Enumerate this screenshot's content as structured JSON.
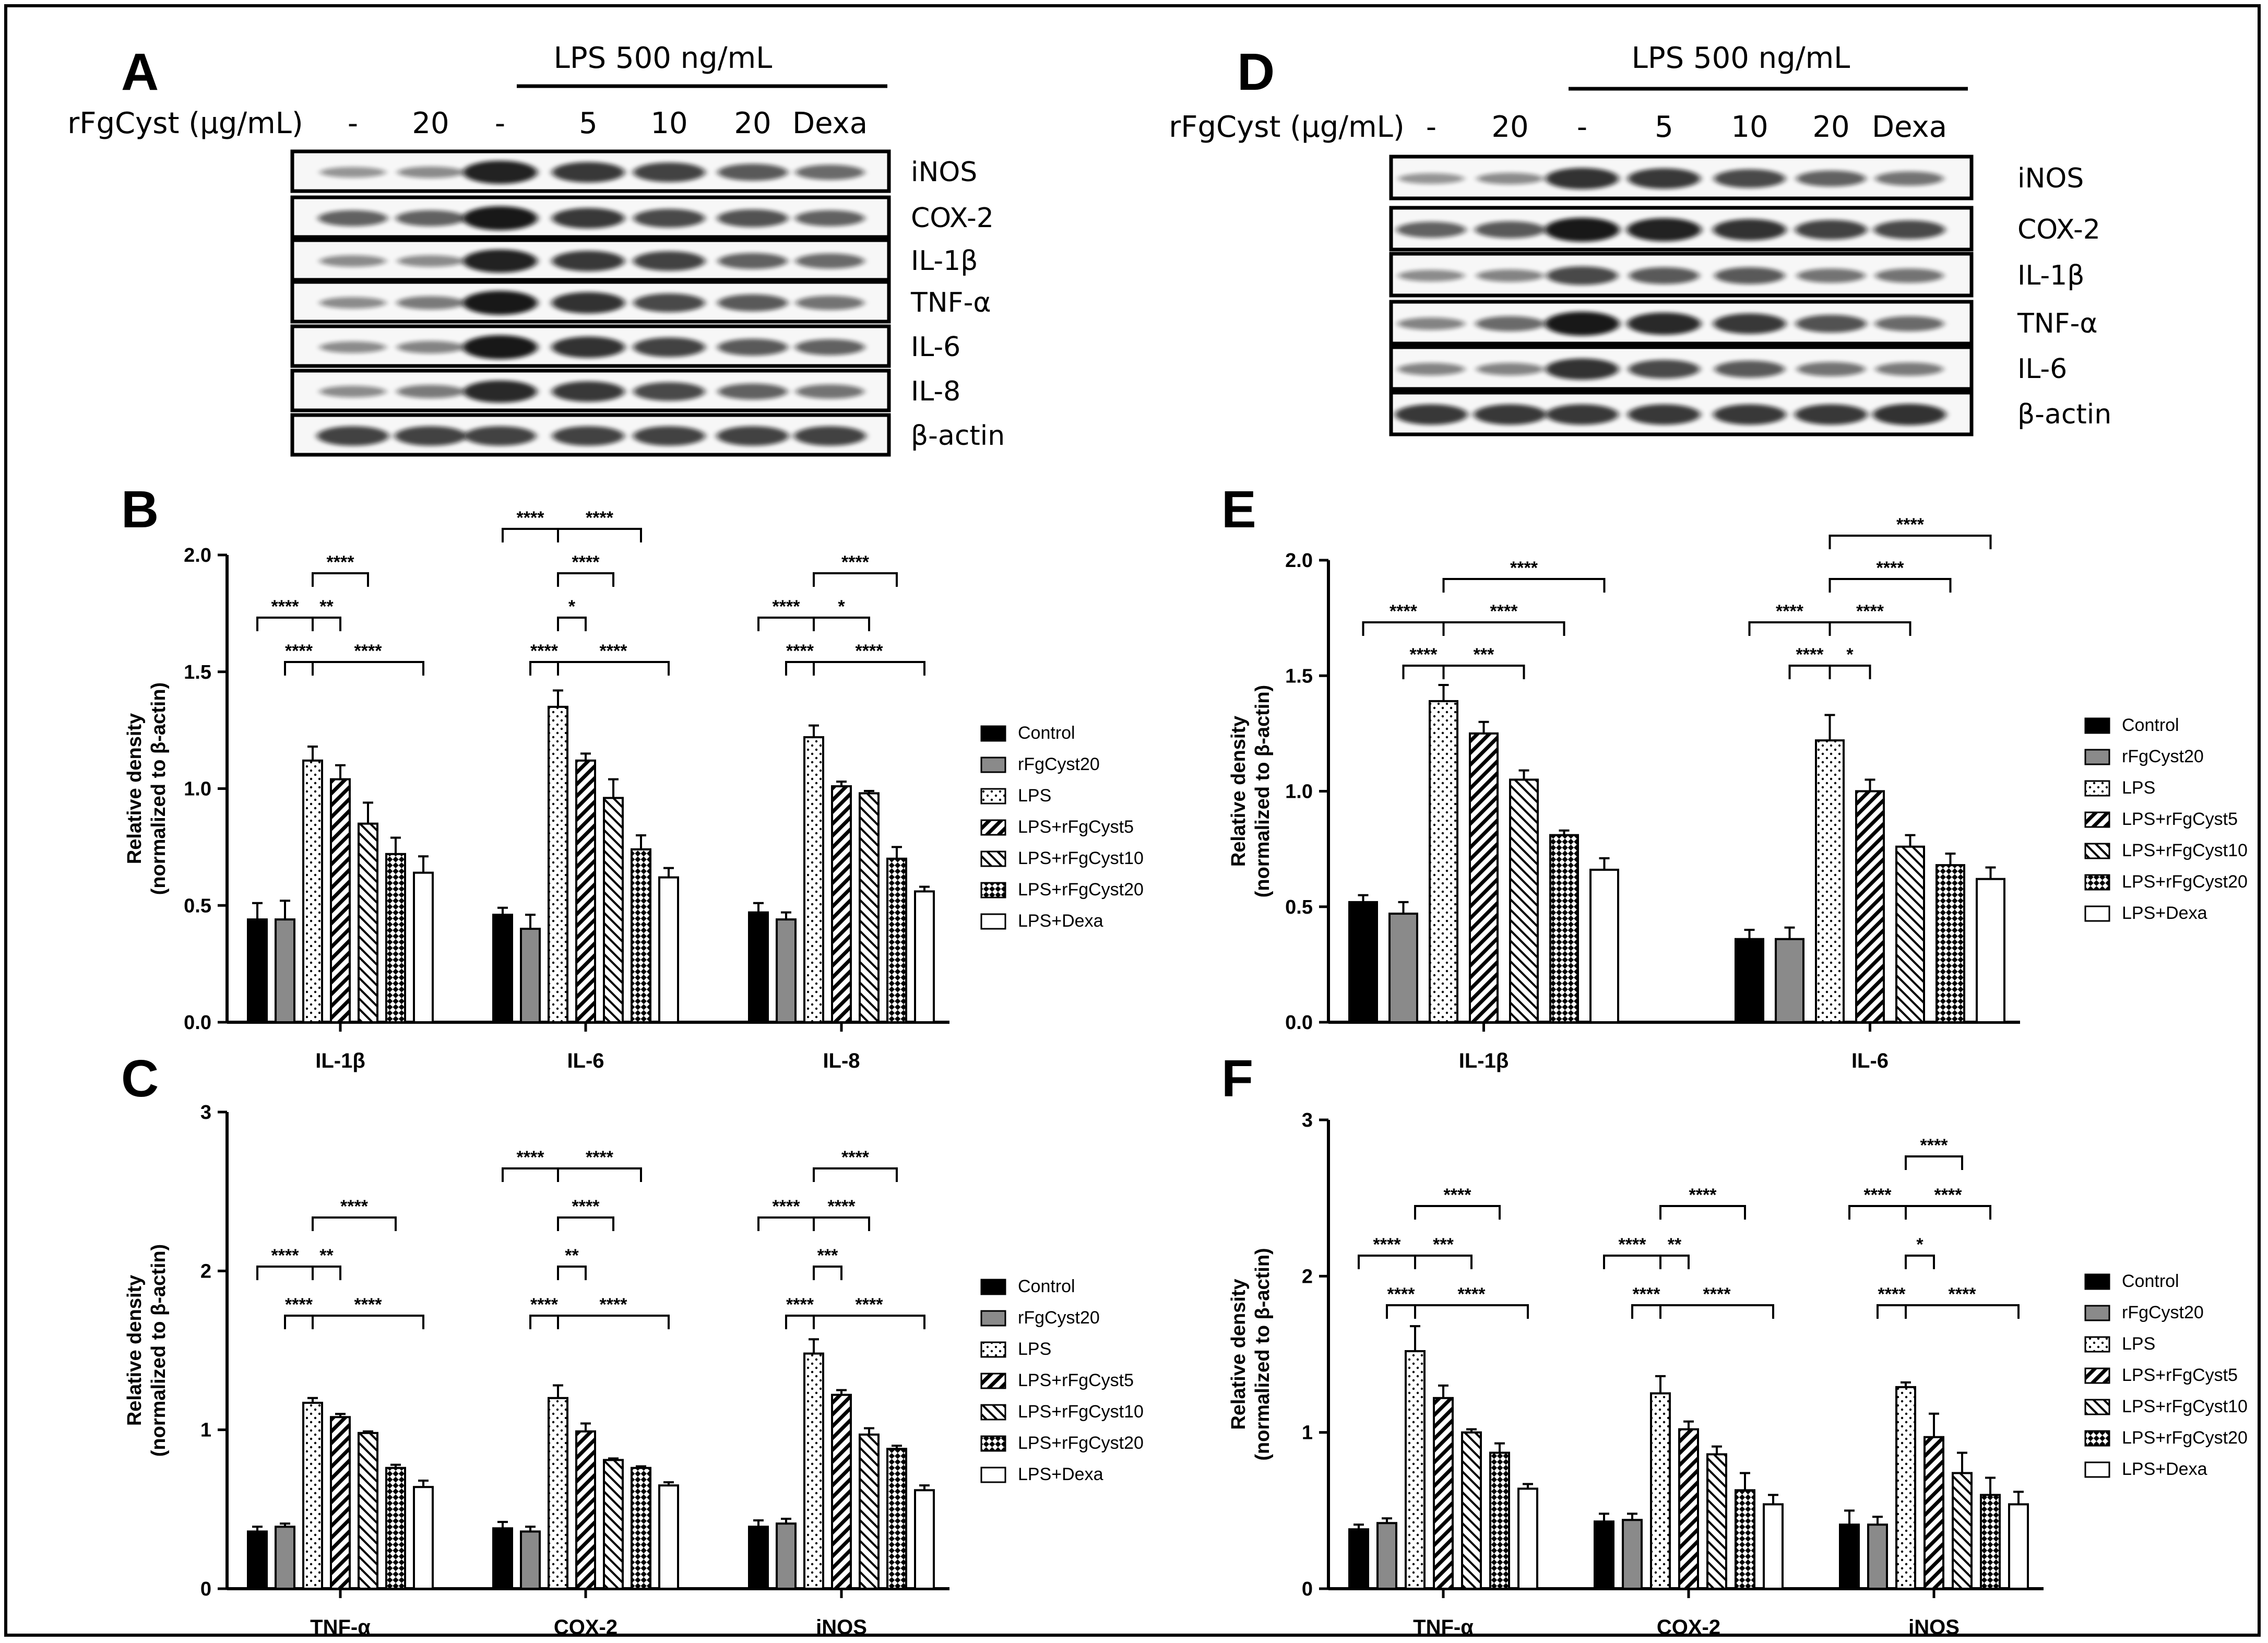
{
  "colors": {
    "black": "#000000",
    "gray": "#8a8a8a",
    "white": "#ffffff",
    "band": "#1a1a1a"
  },
  "legend": [
    {
      "label": "Control",
      "fill": "solid-black"
    },
    {
      "label": "rFgCyst20",
      "fill": "solid-gray"
    },
    {
      "label": "LPS",
      "fill": "dots"
    },
    {
      "label": "LPS+rFgCyst5",
      "fill": "hatch-back"
    },
    {
      "label": "LPS+rFgCyst10",
      "fill": "hatch-fwd"
    },
    {
      "label": "LPS+rFgCyst20",
      "fill": "checker"
    },
    {
      "label": "LPS+Dexa",
      "fill": "solid-white"
    }
  ],
  "blots": [
    {
      "panel": "A",
      "lps_label": "LPS 500 ng/mL",
      "treatment_label": "rFgCyst (μg/mL)",
      "lanes": [
        "-",
        "20",
        "-",
        "5",
        "10",
        "20",
        "Dexa"
      ],
      "rows": [
        {
          "name": "iNOS",
          "intensity": [
            0.25,
            0.3,
            0.95,
            0.8,
            0.75,
            0.6,
            0.5
          ]
        },
        {
          "name": "COX-2",
          "intensity": [
            0.55,
            0.55,
            1.0,
            0.8,
            0.7,
            0.65,
            0.55
          ]
        },
        {
          "name": "IL-1β",
          "intensity": [
            0.3,
            0.3,
            0.95,
            0.8,
            0.75,
            0.55,
            0.5
          ]
        },
        {
          "name": "TNF-α",
          "intensity": [
            0.3,
            0.4,
            1.0,
            0.85,
            0.7,
            0.6,
            0.45
          ]
        },
        {
          "name": "IL-6",
          "intensity": [
            0.3,
            0.35,
            1.0,
            0.85,
            0.75,
            0.6,
            0.55
          ]
        },
        {
          "name": "IL-8",
          "intensity": [
            0.3,
            0.4,
            0.9,
            0.8,
            0.7,
            0.55,
            0.45
          ]
        },
        {
          "name": "β-actin",
          "intensity": [
            0.75,
            0.75,
            0.75,
            0.75,
            0.75,
            0.75,
            0.75
          ]
        }
      ]
    },
    {
      "panel": "D",
      "lps_label": "LPS 500 ng/mL",
      "treatment_label": "rFgCyst (μg/mL)",
      "lanes": [
        "-",
        "20",
        "-",
        "5",
        "10",
        "20",
        "Dexa"
      ],
      "rows": [
        {
          "name": "iNOS",
          "intensity": [
            0.25,
            0.3,
            0.85,
            0.8,
            0.7,
            0.55,
            0.45
          ]
        },
        {
          "name": "COX-2",
          "intensity": [
            0.55,
            0.6,
            1.0,
            0.95,
            0.85,
            0.75,
            0.7
          ]
        },
        {
          "name": "IL-1β",
          "intensity": [
            0.3,
            0.35,
            0.7,
            0.6,
            0.6,
            0.45,
            0.45
          ]
        },
        {
          "name": "TNF-α",
          "intensity": [
            0.35,
            0.5,
            1.0,
            0.9,
            0.8,
            0.65,
            0.5
          ]
        },
        {
          "name": "IL-6",
          "intensity": [
            0.35,
            0.35,
            0.85,
            0.7,
            0.6,
            0.45,
            0.4
          ]
        },
        {
          "name": "β-actin",
          "intensity": [
            0.8,
            0.8,
            0.8,
            0.8,
            0.8,
            0.8,
            0.85
          ]
        }
      ]
    }
  ],
  "chart_data": [
    {
      "panel": "B",
      "type": "bar",
      "ylabel": "Relative density (normalized to β-actin)",
      "ylim": [
        0,
        2.0
      ],
      "yticks": [
        "0.0",
        "0.5",
        "1.0",
        "1.5",
        "2.0"
      ],
      "ytick_values": [
        0,
        0.5,
        1.0,
        1.5,
        2.0
      ],
      "categories": [
        "IL-1β",
        "IL-6",
        "IL-8"
      ],
      "series": [
        {
          "name": "Control",
          "values": [
            0.44,
            0.46,
            0.47
          ],
          "errors": [
            0.07,
            0.03,
            0.04
          ]
        },
        {
          "name": "rFgCyst20",
          "values": [
            0.44,
            0.4,
            0.44
          ],
          "errors": [
            0.08,
            0.06,
            0.03
          ]
        },
        {
          "name": "LPS",
          "values": [
            1.12,
            1.35,
            1.22
          ],
          "errors": [
            0.06,
            0.07,
            0.05
          ]
        },
        {
          "name": "LPS+rFgCyst5",
          "values": [
            1.04,
            1.12,
            1.01
          ],
          "errors": [
            0.06,
            0.03,
            0.02
          ]
        },
        {
          "name": "LPS+rFgCyst10",
          "values": [
            0.85,
            0.96,
            0.98
          ],
          "errors": [
            0.09,
            0.08,
            0.01
          ]
        },
        {
          "name": "LPS+rFgCyst20",
          "values": [
            0.72,
            0.74,
            0.7
          ],
          "errors": [
            0.07,
            0.06,
            0.05
          ]
        },
        {
          "name": "LPS+Dexa",
          "values": [
            0.64,
            0.62,
            0.56
          ],
          "errors": [
            0.07,
            0.04,
            0.02
          ]
        }
      ],
      "significance": [
        [
          {
            "from": 0,
            "to": 2,
            "level": 1,
            "label": "****"
          },
          {
            "from": 1,
            "to": 2,
            "level": 0,
            "label": "****"
          },
          {
            "from": 2,
            "to": 3,
            "level": 1,
            "label": "**"
          },
          {
            "from": 2,
            "to": 4,
            "level": 2,
            "label": "****"
          },
          {
            "from": 2,
            "to": 6,
            "level": 0,
            "label": "****"
          }
        ],
        [
          {
            "from": 0,
            "to": 2,
            "level": 3,
            "label": "****"
          },
          {
            "from": 1,
            "to": 2,
            "level": 0,
            "label": "****"
          },
          {
            "from": 2,
            "to": 3,
            "level": 1,
            "label": "*"
          },
          {
            "from": 2,
            "to": 4,
            "level": 2,
            "label": "****"
          },
          {
            "from": 2,
            "to": 5,
            "level": 3,
            "label": "****"
          },
          {
            "from": 2,
            "to": 6,
            "level": 0,
            "label": "****"
          }
        ],
        [
          {
            "from": 0,
            "to": 2,
            "level": 1,
            "label": "****"
          },
          {
            "from": 1,
            "to": 2,
            "level": 0,
            "label": "****"
          },
          {
            "from": 2,
            "to": 4,
            "level": 1,
            "label": "*"
          },
          {
            "from": 2,
            "to": 5,
            "level": 2,
            "label": "****"
          },
          {
            "from": 2,
            "to": 6,
            "level": 0,
            "label": "****"
          }
        ]
      ]
    },
    {
      "panel": "C",
      "type": "bar",
      "ylabel": "Relative density (normalized to β-actin)",
      "ylim": [
        0,
        3
      ],
      "yticks": [
        "0",
        "1",
        "2",
        "3"
      ],
      "ytick_values": [
        0,
        1,
        2,
        3
      ],
      "categories": [
        "TNF-α",
        "COX-2",
        "iNOS"
      ],
      "series": [
        {
          "name": "Control",
          "values": [
            0.36,
            0.38,
            0.39
          ],
          "errors": [
            0.03,
            0.04,
            0.04
          ]
        },
        {
          "name": "rFgCyst20",
          "values": [
            0.39,
            0.36,
            0.41
          ],
          "errors": [
            0.02,
            0.03,
            0.03
          ]
        },
        {
          "name": "LPS",
          "values": [
            1.17,
            1.2,
            1.48
          ],
          "errors": [
            0.03,
            0.08,
            0.09
          ]
        },
        {
          "name": "LPS+rFgCyst5",
          "values": [
            1.08,
            0.99,
            1.22
          ],
          "errors": [
            0.02,
            0.05,
            0.03
          ]
        },
        {
          "name": "LPS+rFgCyst10",
          "values": [
            0.98,
            0.81,
            0.97
          ],
          "errors": [
            0.01,
            0.01,
            0.04
          ]
        },
        {
          "name": "LPS+rFgCyst20",
          "values": [
            0.76,
            0.76,
            0.88
          ],
          "errors": [
            0.02,
            0.01,
            0.02
          ]
        },
        {
          "name": "LPS+Dexa",
          "values": [
            0.64,
            0.65,
            0.62
          ],
          "errors": [
            0.04,
            0.02,
            0.03
          ]
        }
      ],
      "significance": [
        [
          {
            "from": 0,
            "to": 2,
            "level": 1,
            "label": "****"
          },
          {
            "from": 1,
            "to": 2,
            "level": 0,
            "label": "****"
          },
          {
            "from": 2,
            "to": 3,
            "level": 1,
            "label": "**"
          },
          {
            "from": 2,
            "to": 5,
            "level": 2,
            "label": "****"
          },
          {
            "from": 2,
            "to": 6,
            "level": 0,
            "label": "****"
          }
        ],
        [
          {
            "from": 0,
            "to": 2,
            "level": 3,
            "label": "****"
          },
          {
            "from": 1,
            "to": 2,
            "level": 0,
            "label": "****"
          },
          {
            "from": 2,
            "to": 3,
            "level": 1,
            "label": "**"
          },
          {
            "from": 2,
            "to": 4,
            "level": 2,
            "label": "****"
          },
          {
            "from": 2,
            "to": 5,
            "level": 3,
            "label": "****"
          },
          {
            "from": 2,
            "to": 6,
            "level": 0,
            "label": "****"
          }
        ],
        [
          {
            "from": 0,
            "to": 2,
            "level": 2,
            "label": "****"
          },
          {
            "from": 1,
            "to": 2,
            "level": 0,
            "label": "****"
          },
          {
            "from": 2,
            "to": 3,
            "level": 1,
            "label": "***"
          },
          {
            "from": 2,
            "to": 4,
            "level": 2,
            "label": "****"
          },
          {
            "from": 2,
            "to": 5,
            "level": 3,
            "label": "****"
          },
          {
            "from": 2,
            "to": 6,
            "level": 0,
            "label": "****"
          }
        ]
      ]
    },
    {
      "panel": "E",
      "type": "bar",
      "ylabel": "Relative density (normalized to β-actin)",
      "ylim": [
        0,
        2.0
      ],
      "yticks": [
        "0.0",
        "0.5",
        "1.0",
        "1.5",
        "2.0"
      ],
      "ytick_values": [
        0,
        0.5,
        1.0,
        1.5,
        2.0
      ],
      "categories": [
        "IL-1β",
        "IL-6"
      ],
      "series": [
        {
          "name": "Control",
          "values": [
            0.52,
            0.36
          ],
          "errors": [
            0.03,
            0.04
          ]
        },
        {
          "name": "rFgCyst20",
          "values": [
            0.47,
            0.36
          ],
          "errors": [
            0.05,
            0.05
          ]
        },
        {
          "name": "LPS",
          "values": [
            1.39,
            1.22
          ],
          "errors": [
            0.07,
            0.11
          ]
        },
        {
          "name": "LPS+rFgCyst5",
          "values": [
            1.25,
            1.0
          ],
          "errors": [
            0.05,
            0.05
          ]
        },
        {
          "name": "LPS+rFgCyst10",
          "values": [
            1.05,
            0.76
          ],
          "errors": [
            0.04,
            0.05
          ]
        },
        {
          "name": "LPS+rFgCyst20",
          "values": [
            0.81,
            0.68
          ],
          "errors": [
            0.02,
            0.05
          ]
        },
        {
          "name": "LPS+Dexa",
          "values": [
            0.66,
            0.62
          ],
          "errors": [
            0.05,
            0.05
          ]
        }
      ],
      "significance": [
        [
          {
            "from": 0,
            "to": 2,
            "level": 1,
            "label": "****"
          },
          {
            "from": 1,
            "to": 2,
            "level": 0,
            "label": "****"
          },
          {
            "from": 2,
            "to": 4,
            "level": 0,
            "label": "***"
          },
          {
            "from": 2,
            "to": 5,
            "level": 1,
            "label": "****"
          },
          {
            "from": 2,
            "to": 6,
            "level": 2,
            "label": "****"
          }
        ],
        [
          {
            "from": 0,
            "to": 2,
            "level": 1,
            "label": "****"
          },
          {
            "from": 1,
            "to": 2,
            "level": 0,
            "label": "****"
          },
          {
            "from": 2,
            "to": 3,
            "level": 0,
            "label": "*"
          },
          {
            "from": 2,
            "to": 4,
            "level": 1,
            "label": "****"
          },
          {
            "from": 2,
            "to": 5,
            "level": 2,
            "label": "****"
          },
          {
            "from": 2,
            "to": 6,
            "level": 3,
            "label": "****"
          }
        ]
      ]
    },
    {
      "panel": "F",
      "type": "bar",
      "ylabel": "Relative density (normalized to β-actin)",
      "ylim": [
        0,
        3
      ],
      "yticks": [
        "0",
        "1",
        "2",
        "3"
      ],
      "ytick_values": [
        0,
        1,
        2,
        3
      ],
      "categories": [
        "TNF-α",
        "COX-2",
        "iNOS"
      ],
      "series": [
        {
          "name": "Control",
          "values": [
            0.38,
            0.43,
            0.41
          ],
          "errors": [
            0.03,
            0.05,
            0.09
          ]
        },
        {
          "name": "rFgCyst20",
          "values": [
            0.42,
            0.44,
            0.41
          ],
          "errors": [
            0.03,
            0.04,
            0.05
          ]
        },
        {
          "name": "LPS",
          "values": [
            1.52,
            1.25,
            1.29
          ],
          "errors": [
            0.16,
            0.11,
            0.03
          ]
        },
        {
          "name": "LPS+rFgCyst5",
          "values": [
            1.22,
            1.02,
            0.97
          ],
          "errors": [
            0.08,
            0.05,
            0.15
          ]
        },
        {
          "name": "LPS+rFgCyst10",
          "values": [
            1.0,
            0.86,
            0.74
          ],
          "errors": [
            0.02,
            0.05,
            0.13
          ]
        },
        {
          "name": "LPS+rFgCyst20",
          "values": [
            0.87,
            0.63,
            0.6
          ],
          "errors": [
            0.06,
            0.11,
            0.11
          ]
        },
        {
          "name": "LPS+Dexa",
          "values": [
            0.64,
            0.54,
            0.54
          ],
          "errors": [
            0.03,
            0.06,
            0.08
          ]
        }
      ],
      "significance": [
        [
          {
            "from": 0,
            "to": 2,
            "level": 1,
            "label": "****"
          },
          {
            "from": 1,
            "to": 2,
            "level": 0,
            "label": "****"
          },
          {
            "from": 2,
            "to": 4,
            "level": 1,
            "label": "***"
          },
          {
            "from": 2,
            "to": 5,
            "level": 2,
            "label": "****"
          },
          {
            "from": 2,
            "to": 6,
            "level": 0,
            "label": "****"
          }
        ],
        [
          {
            "from": 0,
            "to": 2,
            "level": 1,
            "label": "****"
          },
          {
            "from": 1,
            "to": 2,
            "level": 0,
            "label": "****"
          },
          {
            "from": 2,
            "to": 3,
            "level": 1,
            "label": "**"
          },
          {
            "from": 2,
            "to": 5,
            "level": 2,
            "label": "****"
          },
          {
            "from": 2,
            "to": 6,
            "level": 0,
            "label": "****"
          }
        ],
        [
          {
            "from": 0,
            "to": 2,
            "level": 2,
            "label": "****"
          },
          {
            "from": 1,
            "to": 2,
            "level": 0,
            "label": "****"
          },
          {
            "from": 2,
            "to": 3,
            "level": 1,
            "label": "*"
          },
          {
            "from": 2,
            "to": 5,
            "level": 2,
            "label": "****"
          },
          {
            "from": 2,
            "to": 6,
            "level": 0,
            "label": "****"
          },
          {
            "from": 2,
            "to": 4,
            "level": 3,
            "label": "****"
          }
        ]
      ]
    }
  ]
}
